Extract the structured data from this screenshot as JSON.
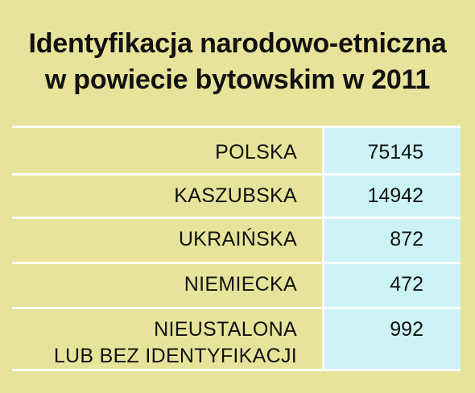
{
  "chart_data": {
    "type": "table",
    "title": "Identyfikacja narodowo-etniczna w powiecie bytowskim w 2011",
    "title_lines": [
      "Identyfikacja narodowo-etniczna",
      "w powiecie bytowskim w 2011"
    ],
    "rows": [
      {
        "label_lines": [
          "POLSKA"
        ],
        "value": "75145"
      },
      {
        "label_lines": [
          "KASZUBSKA"
        ],
        "value": "14942"
      },
      {
        "label_lines": [
          "UKRAIŃSKA"
        ],
        "value": "872"
      },
      {
        "label_lines": [
          "NIEMIECKA"
        ],
        "value": "472"
      },
      {
        "label_lines": [
          "NIEUSTALONA",
          "LUB BEZ IDENTYFIKACJI"
        ],
        "value": "992"
      }
    ]
  },
  "colors": {
    "background": "#e8e39a",
    "value_cell": "#ccf3f5",
    "divider": "#ffffff",
    "text": "#111111"
  }
}
